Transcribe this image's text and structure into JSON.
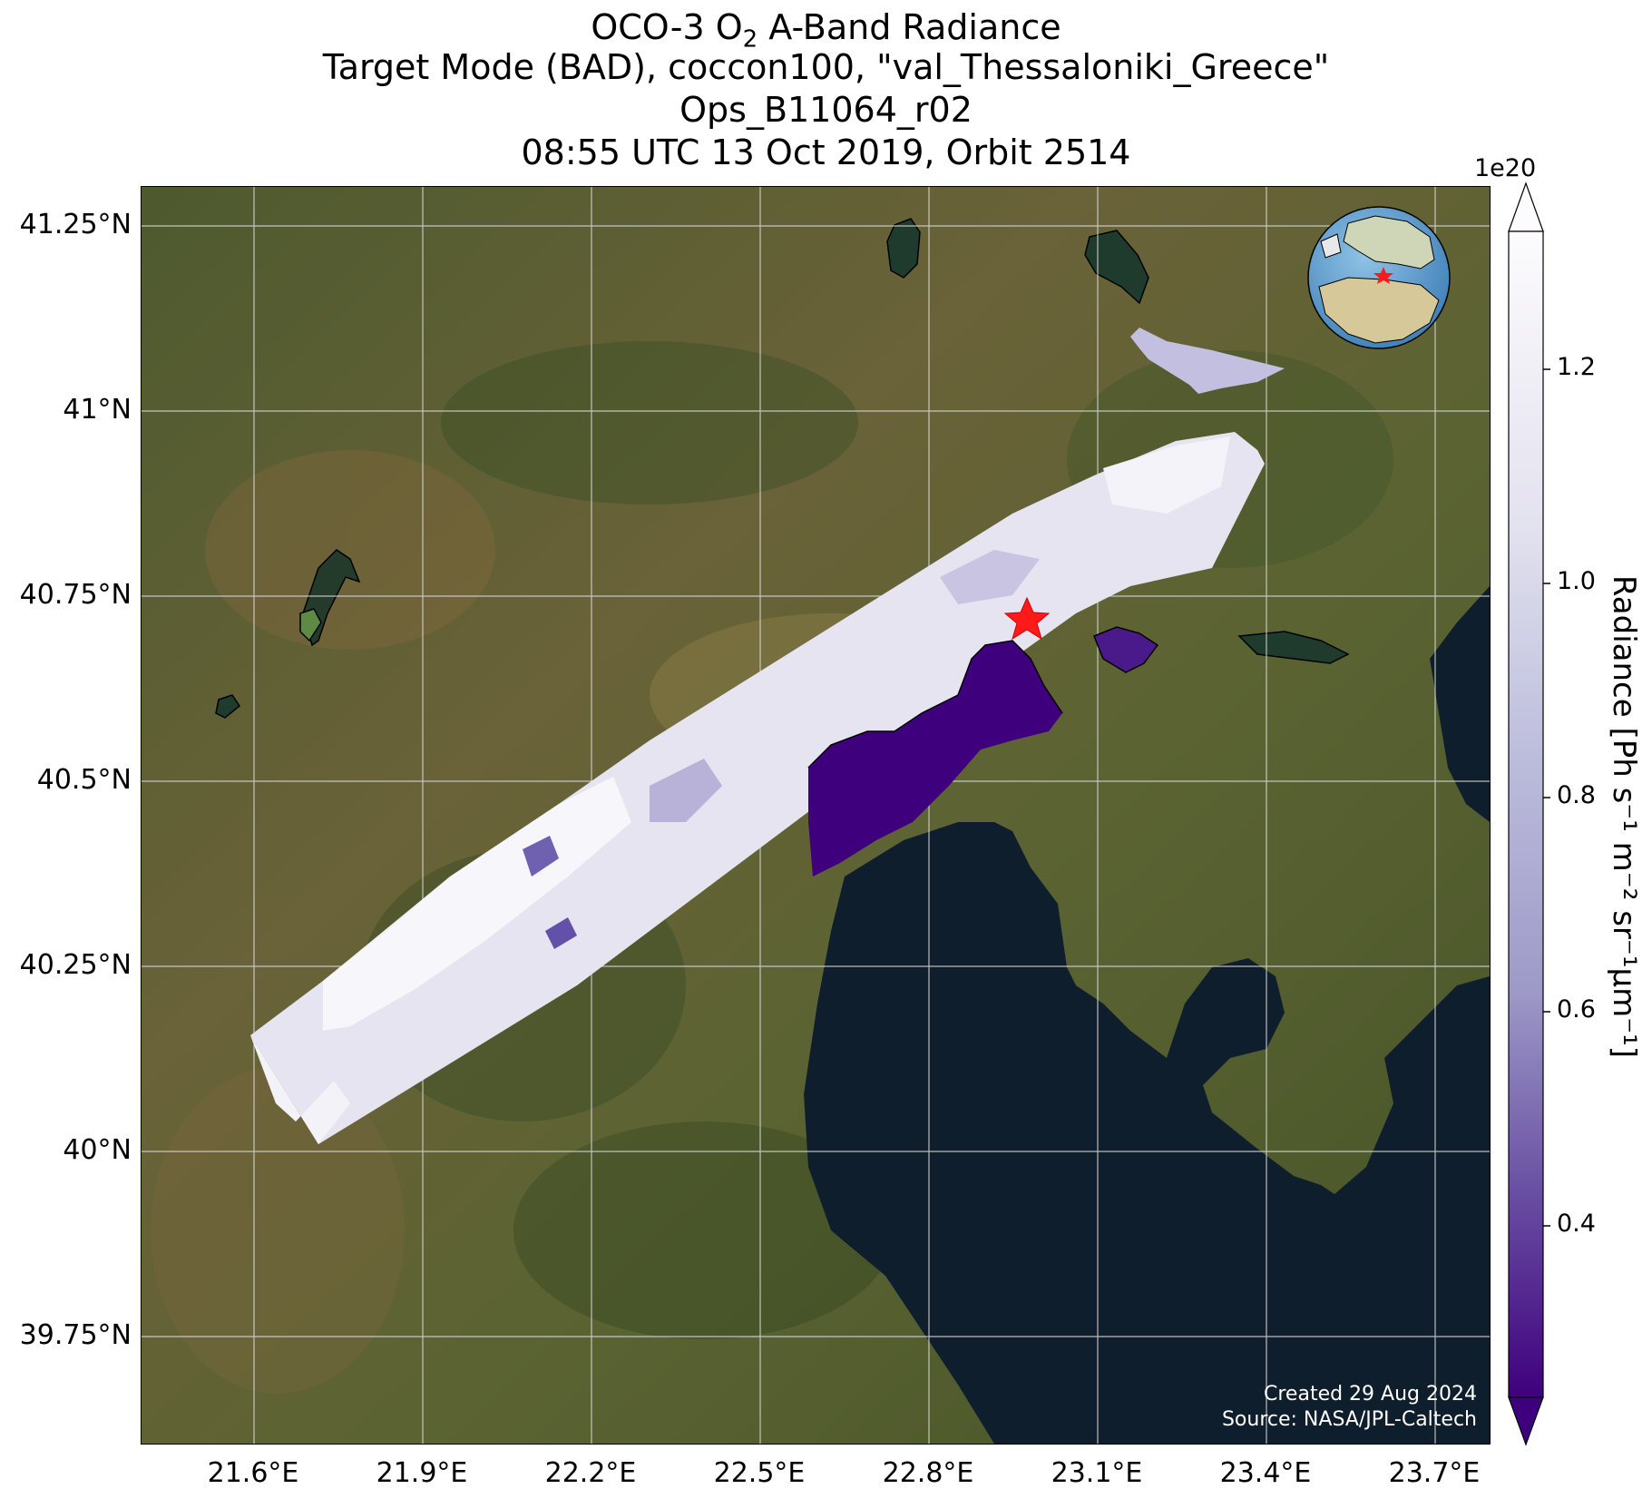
{
  "title": {
    "line1_prefix": "OCO-3 O",
    "line1_sub": "2",
    "line1_suffix": " A-Band Radiance",
    "line2": "Target Mode (BAD), coccon100, \"val_Thessaloniki_Greece\"",
    "line3": "Ops_B11064_r02",
    "line4": "08:55 UTC 13 Oct 2019, Orbit 2514"
  },
  "map": {
    "lon_range": [
      21.42,
      23.85
    ],
    "lat_range": [
      39.62,
      41.3
    ],
    "lat_ticks": [
      "41.25°N",
      "41°N",
      "40.75°N",
      "40.5°N",
      "40.25°N",
      "40°N",
      "39.75°N"
    ],
    "lon_ticks": [
      "21.6°E",
      "21.9°E",
      "22.2°E",
      "22.5°E",
      "22.8°E",
      "23.1°E",
      "23.4°E",
      "23.7°E"
    ],
    "background": "satellite imagery (land, Thermaikos Gulf sea)",
    "land_color": "#5a5f36",
    "sea_color": "#0f1e2d",
    "target_marker": "red-star",
    "target_color": "#ff1a1a",
    "inset": "globe-icon with Europe/Africa and red star at target"
  },
  "credit": {
    "created": "Created 29 Aug 2024",
    "source": "Source: NASA/JPL-Caltech"
  },
  "colorbar": {
    "exponent": "1e20",
    "label": "Radiance [Ph s⁻¹ m⁻² sr⁻¹μm⁻¹]",
    "ticks": [
      "1.2",
      "1.0",
      "0.8",
      "0.6",
      "0.4"
    ],
    "range": [
      0.22,
      1.3
    ],
    "cmap": "Purples_r",
    "extend": "both"
  }
}
